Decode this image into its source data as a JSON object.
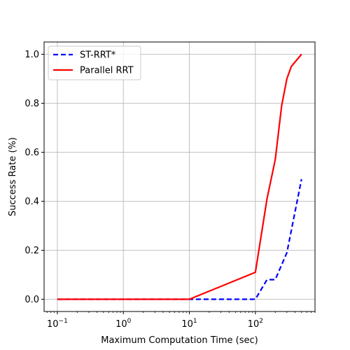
{
  "chart_data": {
    "type": "line",
    "xlabel": "Maximum Computation Time (sec)",
    "ylabel": "Success Rate (%)",
    "xscale": "log",
    "xlim": [
      0.063,
      800
    ],
    "ylim": [
      -0.05,
      1.05
    ],
    "grid": true,
    "legend_position": "top-left",
    "x_ticks": [
      {
        "value": 0.1,
        "base": "10",
        "exp": "−1"
      },
      {
        "value": 1,
        "base": "10",
        "exp": "0"
      },
      {
        "value": 10,
        "base": "10",
        "exp": "1"
      },
      {
        "value": 100,
        "base": "10",
        "exp": "2"
      }
    ],
    "y_ticks": [
      {
        "value": 0.0,
        "label": "0.0"
      },
      {
        "value": 0.2,
        "label": "0.2"
      },
      {
        "value": 0.4,
        "label": "0.4"
      },
      {
        "value": 0.6,
        "label": "0.6"
      },
      {
        "value": 0.8,
        "label": "0.8"
      },
      {
        "value": 1.0,
        "label": "1.0"
      }
    ],
    "series": [
      {
        "name": "ST-RRT*",
        "color": "#0000ff",
        "dash": "dashed",
        "x": [
          0.1,
          10,
          100,
          150,
          200,
          300,
          500
        ],
        "y": [
          0.0,
          0.0,
          0.0,
          0.08,
          0.08,
          0.19,
          0.49
        ]
      },
      {
        "name": "Parallel RRT",
        "color": "#ff0000",
        "dash": "solid",
        "x": [
          0.1,
          10,
          100,
          150,
          200,
          250,
          300,
          350,
          500
        ],
        "y": [
          0.0,
          0.0,
          0.11,
          0.41,
          0.57,
          0.79,
          0.9,
          0.95,
          1.0
        ]
      }
    ]
  }
}
